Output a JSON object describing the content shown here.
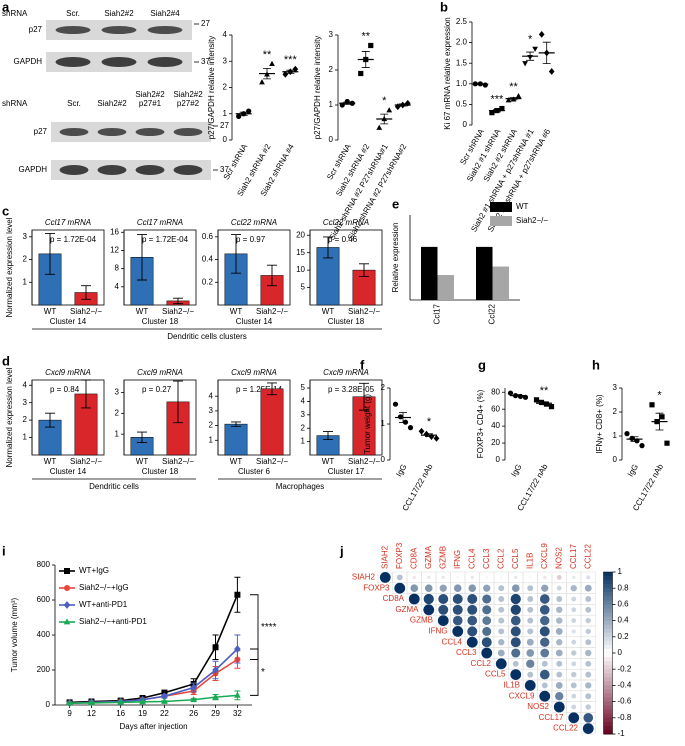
{
  "chart_data": [
    {
      "type": "blot",
      "panel": "a",
      "label": "shRNA",
      "lanes": [
        [
          "Scr."
        ],
        [
          "Siah2#2"
        ],
        [
          "Siah2#4"
        ]
      ],
      "rows": [
        "p27",
        "GAPDH"
      ],
      "markers": [
        27,
        37
      ]
    },
    {
      "type": "blot",
      "label": "shRNA",
      "lanes": [
        [
          "Scr."
        ],
        [
          "Siah2#2"
        ],
        [
          "Siah2#2",
          "p27#1"
        ],
        [
          "Siah2#2",
          "p27#2"
        ]
      ],
      "rows": [
        "p27",
        "GAPDH"
      ],
      "markers": [
        27,
        37
      ]
    },
    {
      "type": "dot",
      "ylabel": "p27/GAPDH relative intensity",
      "categories": [
        "Scr shRNA",
        "Siah2 shRNA #2",
        "Siah2 shRNA #4"
      ],
      "points": [
        [
          0.9,
          1.0,
          1.1
        ],
        [
          2.2,
          2.5,
          2.9
        ],
        [
          2.5,
          2.6,
          2.7
        ]
      ],
      "means": [
        1.0,
        2.53,
        2.6
      ],
      "errors": [
        0.06,
        0.2,
        0.06
      ],
      "significance": [
        null,
        "**",
        "***"
      ],
      "markers": [
        "circle",
        "triangle",
        "diamond"
      ],
      "color": "#000000",
      "ylim": [
        0,
        4
      ],
      "yticks": [
        0,
        1,
        2,
        3,
        4
      ]
    },
    {
      "type": "dot",
      "ylabel": "p27/GAPDH relative intensity",
      "categories": [
        "Scr shRNA",
        "Siah2 shRNA #2",
        "Siah2 shRNA #2 P27shRNA#1",
        "Siah2 shRNA #2 P27shRNA#2"
      ],
      "points": [
        [
          1.0,
          1.1,
          1.05
        ],
        [
          1.9,
          2.3,
          2.7
        ],
        [
          0.35,
          0.6,
          0.85
        ],
        [
          0.95,
          1.0,
          1.05
        ]
      ],
      "means": [
        1.05,
        2.3,
        0.6,
        1.0
      ],
      "errors": [
        0.03,
        0.23,
        0.14,
        0.03
      ],
      "significance": [
        null,
        "**",
        "*",
        null
      ],
      "markers": [
        "circle",
        "square",
        "triangle",
        "diamond"
      ],
      "color": "#000000",
      "ylim": [
        0,
        3
      ],
      "yticks": [
        0,
        1,
        2,
        3
      ]
    },
    {
      "type": "dot",
      "panel": "b",
      "ylabel": "Ki 67 mRNA relative expression",
      "categories": [
        "Scr shRNA",
        "Siah2 #1 shRNA",
        "Siah2 #2 shRNA",
        "Siah2 #1 shRNA + p27shRNA #1",
        "Siah2 #1 shRNA + p27shRNA #6"
      ],
      "points": [
        [
          1.0,
          1.0,
          0.97
        ],
        [
          0.3,
          0.35,
          0.4
        ],
        [
          0.6,
          0.62,
          0.7
        ],
        [
          1.5,
          1.65,
          1.85
        ],
        [
          2.2,
          1.75,
          1.3
        ]
      ],
      "means": [
        0.99,
        0.35,
        0.64,
        1.67,
        1.75
      ],
      "errors": [
        0.01,
        0.03,
        0.03,
        0.1,
        0.26
      ],
      "significance": [
        null,
        "***",
        "**",
        "*",
        null
      ],
      "markers": [
        "circle",
        "square",
        "triangle",
        "triangle-down",
        "diamond"
      ],
      "color": "#000000",
      "ylim": [
        0,
        2.5
      ],
      "yticks": [
        0,
        0.5,
        {
          "value": 1,
          "label": "1.0"
        },
        1.5,
        {
          "value": 2,
          "label": "2.0"
        },
        2.5
      ]
    },
    {
      "type": "errbar",
      "panel": "c",
      "ylabel": "Normalized expression level",
      "title": "Ccl17 mRNA",
      "p_label": "p = 1.72E-04",
      "categories": [
        "WT",
        "Siah2−/−"
      ],
      "values": [
        2.25,
        0.55
      ],
      "errors": [
        0.9,
        0.3
      ],
      "colors": [
        "#2f6fb5",
        "#d9262b"
      ],
      "cluster": "Cluster 14",
      "footer": "Dendritic cells clusters",
      "ylim": [
        0,
        3.3
      ],
      "yticks": [
        1,
        2,
        3
      ]
    },
    {
      "type": "errbar",
      "title": "Ccl17 mRNA",
      "p_label": "p = 1.72E-04",
      "categories": [
        "WT",
        "Siah2−/−"
      ],
      "values": [
        10.5,
        0.9
      ],
      "errors": [
        5,
        0.6
      ],
      "colors": [
        "#2f6fb5",
        "#d9262b"
      ],
      "cluster": "Cluster 18",
      "ylim": [
        0,
        16.5
      ],
      "yticks": [
        4,
        8,
        12,
        16
      ]
    },
    {
      "type": "errbar",
      "title": "Ccl22 mRNA",
      "p_label": "p = 0.97",
      "categories": [
        "WT",
        "Siah2−/−"
      ],
      "values": [
        0.45,
        0.26
      ],
      "errors": [
        0.17,
        0.09
      ],
      "colors": [
        "#2f6fb5",
        "#d9262b"
      ],
      "cluster": "Cluster 14",
      "ylim": [
        0,
        0.66
      ],
      "yticks": [
        0.2,
        0.4,
        0.6
      ]
    },
    {
      "type": "errbar",
      "title": "Ccl22 mRNA",
      "p_label": "p = 0.46",
      "categories": [
        "WT",
        "Siah2−/−"
      ],
      "values": [
        16.5,
        10
      ],
      "errors": [
        3,
        1.8
      ],
      "colors": [
        "#2f6fb5",
        "#d9262b"
      ],
      "cluster": "Cluster 18",
      "ylim": [
        0,
        21.5
      ],
      "yticks": [
        5,
        10,
        15,
        20
      ]
    },
    {
      "type": "errbar",
      "panel": "d",
      "ylabel": "Normalized expression level",
      "title": "Cxcl9 mRNA",
      "p_label": "p = 0.84",
      "categories": [
        "WT",
        "Siah2−/−"
      ],
      "values": [
        2.0,
        3.5
      ],
      "errors": [
        0.4,
        0.8
      ],
      "colors": [
        "#2f6fb5",
        "#d9262b"
      ],
      "cluster": "Cluster 14",
      "footer": "Dendritic cells",
      "ylim": [
        0,
        4.3
      ],
      "yticks": [
        1,
        2,
        3,
        4
      ]
    },
    {
      "type": "errbar",
      "title": "Cxcl9 mRNA",
      "p_label": "p = 0.27",
      "categories": [
        "WT",
        "Siah2−/−"
      ],
      "values": [
        0.85,
        2.55
      ],
      "errors": [
        0.25,
        1.0
      ],
      "colors": [
        "#2f6fb5",
        "#d9262b"
      ],
      "cluster": "Cluster 18",
      "ylim": [
        0,
        3.6
      ],
      "yticks": [
        1,
        2,
        3
      ]
    },
    {
      "type": "errbar",
      "title": "Cxcl9 mRNA",
      "p_label": "p = 1.25E-14",
      "categories": [
        "WT",
        "Siah2−/−"
      ],
      "values": [
        2.1,
        4.5
      ],
      "errors": [
        0.15,
        0.4
      ],
      "colors": [
        "#2f6fb5",
        "#d9262b"
      ],
      "cluster": "Cluster 6",
      "footer": "Macrophages",
      "ylim": [
        0,
        5.1
      ],
      "yticks": [
        1,
        2,
        3,
        4
      ]
    },
    {
      "type": "errbar",
      "title": "Cxcl9 mRNA",
      "p_label": "p = 3.28E-05",
      "categories": [
        "WT",
        "Siah2−/−"
      ],
      "values": [
        1.45,
        4.35
      ],
      "errors": [
        0.3,
        1.0
      ],
      "colors": [
        "#2f6fb5",
        "#d9262b"
      ],
      "cluster": "Cluster 17",
      "ylim": [
        0,
        5.6
      ],
      "yticks": [
        1,
        2,
        3,
        4,
        5
      ]
    },
    {
      "type": "groupbar",
      "panel": "e",
      "ylabel": "Relative expression",
      "categories": [
        "Ccl17",
        "Ccl22"
      ],
      "series": [
        {
          "name": "WT",
          "color": "#000000",
          "values": [
            1,
            1
          ]
        },
        {
          "name": "Siah2−/−",
          "color": "#a6a6a6",
          "values": [
            0.47,
            0.63
          ]
        }
      ],
      "ylim": [
        0,
        1.6
      ]
    },
    {
      "type": "dot",
      "panel": "f",
      "ylabel": "Tumor weight (g)",
      "categories": [
        "IgG",
        "CCL17/22 nAb"
      ],
      "points": [
        [
          1.55,
          1.2,
          1.05,
          0.9
        ],
        [
          0.8,
          0.72,
          0.65,
          0.6
        ]
      ],
      "means": [
        1.18,
        0.69
      ],
      "errors": [
        0.14,
        0.04
      ],
      "significance": [
        null,
        "*"
      ],
      "markers": [
        "circle",
        "diamond"
      ],
      "color": "#000000",
      "ylim": [
        0,
        2
      ],
      "yticks": [
        0,
        1,
        2
      ]
    },
    {
      "type": "dot",
      "panel": "g",
      "ylabel": "FOXP3+ CD4+ (%)",
      "categories": [
        "IgG",
        "CCL17/22 nAb"
      ],
      "points": [
        [
          79,
          76,
          75,
          74
        ],
        [
          71,
          68,
          66,
          63
        ]
      ],
      "means": [
        76,
        67
      ],
      "errors": [
        1.2,
        1.7
      ],
      "significance": [
        null,
        "**"
      ],
      "markers": [
        "circle",
        "square"
      ],
      "color": "#000000",
      "ylim": [
        0,
        85
      ],
      "yticks": [
        0,
        20,
        40,
        60,
        80
      ]
    },
    {
      "type": "dot",
      "panel": "h",
      "ylabel": "IFNγ+ CD8+ (%)",
      "categories": [
        "IgG",
        "CCL17/22 nAb"
      ],
      "points": [
        [
          1.1,
          0.9,
          0.8,
          0.6
        ],
        [
          2.3,
          1.6,
          1.8,
          0.7
        ]
      ],
      "means": [
        0.87,
        1.6
      ],
      "errors": [
        0.1,
        0.35
      ],
      "significance": [
        null,
        "*"
      ],
      "markers": [
        "circle",
        "square"
      ],
      "color": "#000000",
      "ylim": [
        0,
        3
      ],
      "yticks": [
        0,
        1,
        2,
        3
      ]
    },
    {
      "type": "line",
      "panel": "i",
      "ylabel": "Tumor volume (mm³)",
      "xlabel": "Days after injection",
      "x": [
        9,
        12,
        16,
        19,
        22,
        26,
        29,
        32
      ],
      "series": [
        {
          "name": "WT+IgG",
          "color": "#000000",
          "marker": "square",
          "values": [
            15,
            20,
            25,
            40,
            70,
            120,
            330,
            630
          ],
          "errors": [
            3,
            4,
            5,
            8,
            15,
            30,
            70,
            100
          ]
        },
        {
          "name": "Siah2−/−+IgG",
          "color": "#e8453c",
          "marker": "circle",
          "values": [
            10,
            15,
            20,
            30,
            50,
            80,
            180,
            260
          ],
          "errors": [
            2,
            3,
            4,
            6,
            10,
            20,
            40,
            50
          ]
        },
        {
          "name": "WT+anti-PD1",
          "color": "#4a5fc1",
          "marker": "diamond",
          "values": [
            10,
            15,
            20,
            30,
            50,
            100,
            200,
            320
          ],
          "errors": [
            2,
            3,
            4,
            6,
            10,
            25,
            50,
            80
          ]
        },
        {
          "name": "Siah2−/−+anti-PD1",
          "color": "#1aaa55",
          "marker": "triangle",
          "values": [
            10,
            12,
            15,
            18,
            20,
            30,
            45,
            55
          ],
          "errors": [
            2,
            2,
            3,
            3,
            4,
            8,
            15,
            25
          ]
        }
      ],
      "annotations": [
        "****",
        "*"
      ],
      "xlim": [
        7,
        34
      ],
      "ylim": [
        0,
        800
      ],
      "yticks": [
        0,
        200,
        400,
        600,
        800
      ]
    },
    {
      "type": "corr",
      "panel": "j",
      "labels": [
        "SIAH2",
        "FOXP3",
        "CD8A",
        "GZMA",
        "GZMB",
        "IFNG",
        "CCL4",
        "CCL3",
        "CCL2",
        "CCL5",
        "IL1B",
        "CXCL9",
        "NOS2",
        "CCL17",
        "CCL22"
      ],
      "label_color": "#d7301f",
      "positive_color": "#053061",
      "negative_color": "#67001f",
      "matrix": [
        [
          1,
          0.3,
          -0.1,
          -0.1,
          -0.1,
          -0.05,
          -0.1,
          -0.05,
          0.05,
          -0.1,
          0.05,
          -0.1,
          -0.2,
          0.1,
          0.15
        ],
        [
          null,
          1,
          0.5,
          0.5,
          0.45,
          0.5,
          0.5,
          0.45,
          0.3,
          0.5,
          0.3,
          0.45,
          0.2,
          0.35,
          0.4
        ],
        [
          null,
          null,
          1,
          0.9,
          0.85,
          0.85,
          0.85,
          0.7,
          0.3,
          0.9,
          0.3,
          0.8,
          0.3,
          0.2,
          0.3
        ],
        [
          null,
          null,
          null,
          1,
          0.85,
          0.85,
          0.85,
          0.7,
          0.3,
          0.9,
          0.3,
          0.8,
          0.35,
          0.2,
          0.3
        ],
        [
          null,
          null,
          null,
          null,
          1,
          0.8,
          0.8,
          0.65,
          0.3,
          0.8,
          0.3,
          0.75,
          0.35,
          0.2,
          0.25
        ],
        [
          null,
          null,
          null,
          null,
          null,
          1,
          0.85,
          0.7,
          0.3,
          0.85,
          0.3,
          0.85,
          0.4,
          0.15,
          0.25
        ],
        [
          null,
          null,
          null,
          null,
          null,
          null,
          1,
          0.85,
          0.35,
          0.85,
          0.4,
          0.75,
          0.35,
          0.2,
          0.3
        ],
        [
          null,
          null,
          null,
          null,
          null,
          null,
          null,
          1,
          0.4,
          0.7,
          0.5,
          0.65,
          0.4,
          0.25,
          0.35
        ],
        [
          null,
          null,
          null,
          null,
          null,
          null,
          null,
          null,
          1,
          0.3,
          0.6,
          0.3,
          0.3,
          0.2,
          0.3
        ],
        [
          null,
          null,
          null,
          null,
          null,
          null,
          null,
          null,
          null,
          1,
          0.3,
          0.8,
          0.3,
          0.25,
          0.3
        ],
        [
          null,
          null,
          null,
          null,
          null,
          null,
          null,
          null,
          null,
          null,
          1,
          0.3,
          0.4,
          0.3,
          0.35
        ],
        [
          null,
          null,
          null,
          null,
          null,
          null,
          null,
          null,
          null,
          null,
          null,
          1,
          0.6,
          0.2,
          0.3
        ],
        [
          null,
          null,
          null,
          null,
          null,
          null,
          null,
          null,
          null,
          null,
          null,
          null,
          1,
          0.2,
          0.25
        ],
        [
          null,
          null,
          null,
          null,
          null,
          null,
          null,
          null,
          null,
          null,
          null,
          null,
          null,
          1,
          0.8
        ],
        [
          null,
          null,
          null,
          null,
          null,
          null,
          null,
          null,
          null,
          null,
          null,
          null,
          null,
          null,
          1
        ]
      ],
      "ylim": [
        -1,
        1
      ],
      "yticks": [
        1,
        0.8,
        0.6,
        0.4,
        0.2,
        0,
        -0.2,
        -0.4,
        -0.6,
        -0.8,
        -1
      ]
    }
  ]
}
